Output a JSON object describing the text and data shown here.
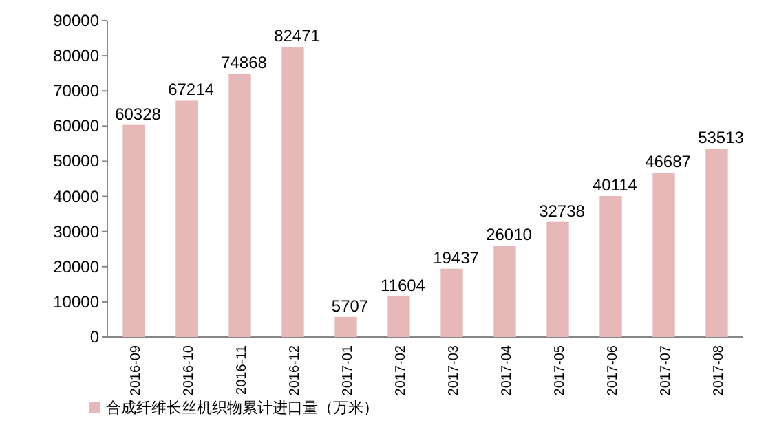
{
  "chart_data": {
    "type": "bar",
    "categories": [
      "2016-09",
      "2016-10",
      "2016-11",
      "2016-12",
      "2017-01",
      "2017-02",
      "2017-03",
      "2017-04",
      "2017-05",
      "2017-06",
      "2017-07",
      "2017-08"
    ],
    "series": [
      {
        "name": "合成纤维长丝机织物累计进口量（万米）",
        "color": "#e6b9b8",
        "values": [
          60328,
          67214,
          74868,
          82471,
          5707,
          11604,
          19437,
          26010,
          32738,
          40114,
          46687,
          53513
        ]
      }
    ],
    "ylim": [
      0,
      90000
    ],
    "yticks": [
      0,
      10000,
      20000,
      30000,
      40000,
      50000,
      60000,
      70000,
      80000,
      90000
    ],
    "data_labels": true,
    "legend": "bottom"
  }
}
